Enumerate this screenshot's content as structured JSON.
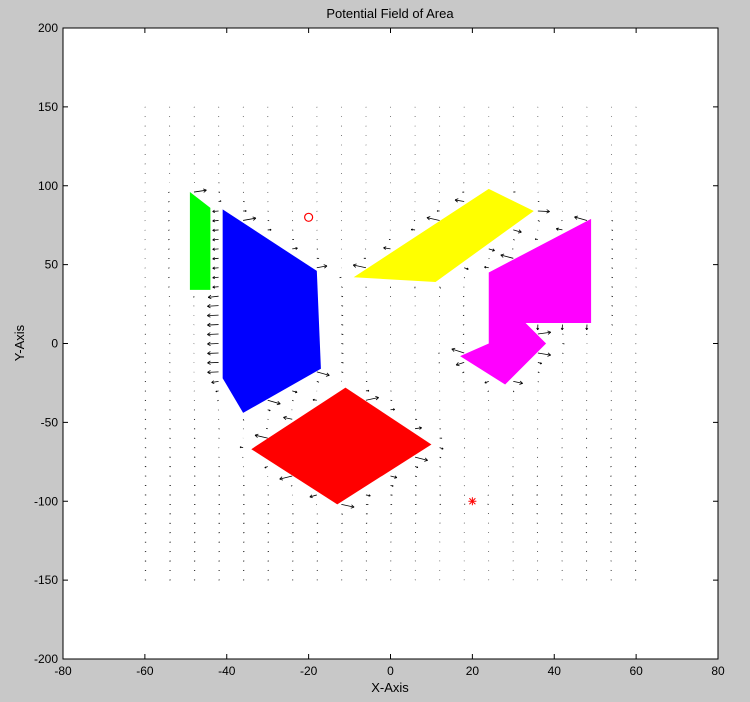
{
  "chart_data": {
    "type": "quiver",
    "title": "Potential Field of Area",
    "xlabel": "X-Axis",
    "ylabel": "Y-Axis",
    "xlim": [
      -80,
      80
    ],
    "ylim": [
      -200,
      200
    ],
    "xticks": [
      "-80",
      "-60",
      "-40",
      "-20",
      "0",
      "20",
      "40",
      "60",
      "80"
    ],
    "yticks": [
      "-200",
      "-150",
      "-100",
      "-50",
      "0",
      "50",
      "100",
      "150",
      "200"
    ],
    "xtick_values": [
      -80,
      -60,
      -40,
      -20,
      0,
      20,
      40,
      60,
      80
    ],
    "ytick_values": [
      -200,
      -150,
      -100,
      -50,
      0,
      50,
      100,
      150,
      200
    ],
    "grid": false,
    "background_color": "#c8c8c8",
    "plot_background": "#ffffff",
    "obstacles": [
      {
        "color": "#00ff00",
        "points": [
          [
            -49,
            96
          ],
          [
            -44,
            86
          ],
          [
            -44,
            34
          ],
          [
            -49,
            34
          ]
        ]
      },
      {
        "color": "#0000ff",
        "points": [
          [
            -41,
            85
          ],
          [
            -18,
            46
          ],
          [
            -17,
            -16
          ],
          [
            -36,
            -44
          ],
          [
            -41,
            -22
          ]
        ]
      },
      {
        "color": "#ffff00",
        "points": [
          [
            -9,
            42
          ],
          [
            24,
            98
          ],
          [
            35,
            84
          ],
          [
            11,
            39
          ]
        ]
      },
      {
        "color": "#ff00ff",
        "points": [
          [
            24,
            45
          ],
          [
            49,
            79
          ],
          [
            49,
            13
          ],
          [
            33,
            13
          ],
          [
            38,
            0
          ],
          [
            28,
            -26
          ],
          [
            17,
            -8
          ],
          [
            24,
            0
          ]
        ]
      },
      {
        "color": "#ff0000",
        "points": [
          [
            -34,
            -67
          ],
          [
            -11,
            -28
          ],
          [
            10,
            -64
          ],
          [
            -13,
            -102
          ]
        ]
      }
    ],
    "start": {
      "x": -20,
      "y": 80,
      "marker": "circle",
      "color": "#ff0000"
    },
    "goal": {
      "x": 20,
      "y": -100,
      "marker": "star",
      "color": "#ff0000"
    },
    "vector_field": {
      "x_range": [
        -60,
        60
      ],
      "y_range": [
        -150,
        150
      ],
      "x_step": 6,
      "y_step": 6,
      "color": "#000000"
    }
  }
}
